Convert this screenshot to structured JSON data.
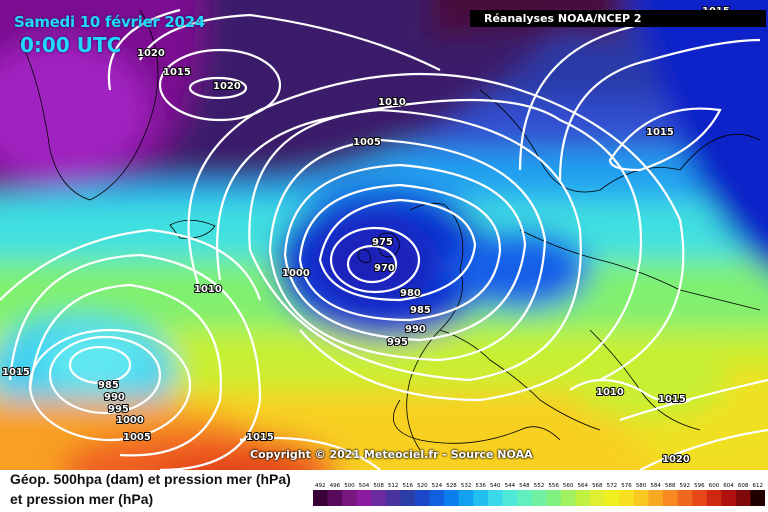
{
  "header": {
    "date": "Samedi 10 février 2024",
    "time": "0:00 UTC",
    "source": "Réanalyses NOAA/NCEP 2"
  },
  "footer": {
    "copyright": "Copyright © 2021 Meteociel.fr - Source NOAA",
    "caption_line1": "Géop. 500hpa (dam) et pression mer (hPa)",
    "caption_line2": "et pression mer (hPa)"
  },
  "map": {
    "isobar_labels": [
      "1020",
      "1015",
      "1020",
      "1010",
      "1005",
      "1015",
      "1000",
      "975",
      "970",
      "980",
      "985",
      "990",
      "995",
      "1010",
      "1015",
      "985",
      "990",
      "995",
      "1000",
      "1005",
      "1015",
      "1010",
      "1015",
      "1020",
      "1015"
    ],
    "lows": [
      "970",
      "985"
    ],
    "colors": {
      "isobar": "#ffffff",
      "coast": "#000000"
    }
  },
  "legend": {
    "scale_labels": [
      "492",
      "496",
      "500",
      "504",
      "508",
      "512",
      "516",
      "520",
      "524",
      "528",
      "532",
      "536",
      "540",
      "544",
      "548",
      "552",
      "556",
      "560",
      "564",
      "568",
      "572",
      "576",
      "580",
      "584",
      "588",
      "592",
      "596",
      "600",
      "604",
      "608",
      "612"
    ],
    "colors": [
      "#3a0038",
      "#5a0a5c",
      "#7a1680",
      "#8a1a9e",
      "#6a2aa0",
      "#48329e",
      "#2a3ea8",
      "#1a48c8",
      "#1260e0",
      "#0a80f0",
      "#12a0f0",
      "#22c0f0",
      "#3ad8e8",
      "#50e8d8",
      "#60f0c0",
      "#70f0a0",
      "#80f080",
      "#a0f060",
      "#c0f040",
      "#e0f030",
      "#f0f020",
      "#f8e020",
      "#f8c820",
      "#f8a820",
      "#f88820",
      "#f06820",
      "#e84818",
      "#d02810",
      "#b01010",
      "#800808",
      "#200000"
    ]
  }
}
